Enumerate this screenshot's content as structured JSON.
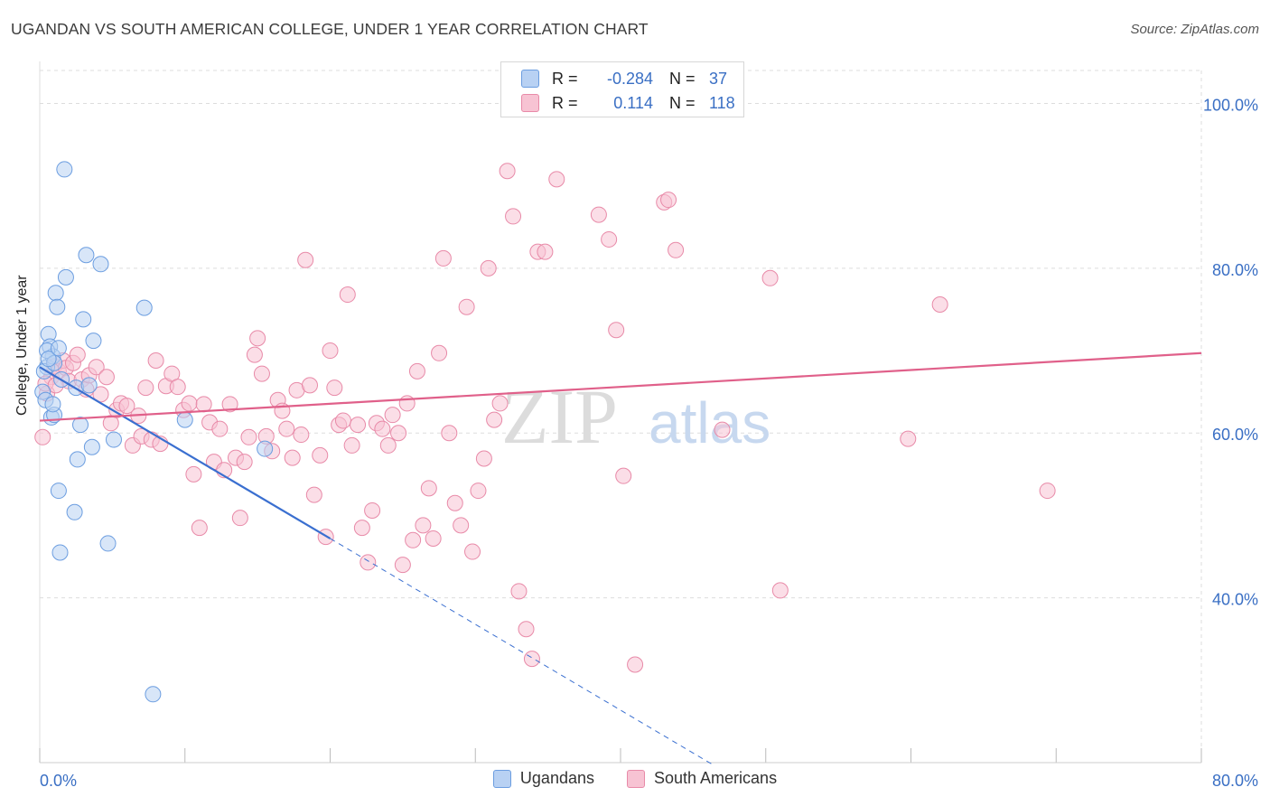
{
  "title": "UGANDAN VS SOUTH AMERICAN COLLEGE, UNDER 1 YEAR CORRELATION CHART",
  "source": "Source: ZipAtlas.com",
  "watermark": {
    "zip": "ZIP",
    "atlas": "atlas"
  },
  "legend": {
    "ugandans": {
      "label": "Ugandans",
      "r_label": "R =",
      "r_value": "-0.284",
      "n_label": "N =",
      "n_value": "37"
    },
    "south_americans": {
      "label": "South Americans",
      "r_label": "R =",
      "r_value": "0.114",
      "n_label": "N =",
      "n_value": "118"
    }
  },
  "colors": {
    "ugandans_fill": "#b8d1f3",
    "ugandans_stroke": "#6b9de0",
    "ugandans_line": "#3a6fd0",
    "sa_fill": "#f7c3d3",
    "sa_stroke": "#e88aa8",
    "sa_line": "#e0608a",
    "tick_label": "#3a6fc4",
    "grid": "#dddddd"
  },
  "chart_data": {
    "type": "scatter",
    "title": "UGANDAN VS SOUTH AMERICAN COLLEGE, UNDER 1 YEAR CORRELATION CHART",
    "xlabel": "",
    "ylabel": "College, Under 1 year",
    "xlim": [
      0,
      80
    ],
    "ylim": [
      20,
      104
    ],
    "x_tick_labels": [
      "0.0%",
      "80.0%"
    ],
    "y_ticks": [
      40,
      60,
      80,
      100
    ],
    "y_tick_labels": [
      "40.0%",
      "60.0%",
      "80.0%",
      "100.0%"
    ],
    "series": [
      {
        "name": "Ugandans",
        "trend": {
          "x0": 0,
          "y0": 68.0,
          "x1": 20.0,
          "y1": 47.2,
          "dash_to_x": 46.5,
          "dash_to_y": 19.6
        },
        "points": [
          [
            0.2,
            65.0
          ],
          [
            0.4,
            64.0
          ],
          [
            0.5,
            68.0
          ],
          [
            0.6,
            72.0
          ],
          [
            0.7,
            70.5
          ],
          [
            0.8,
            61.9
          ],
          [
            0.9,
            69.3
          ],
          [
            1.0,
            62.2
          ],
          [
            1.1,
            77.0
          ],
          [
            1.2,
            75.3
          ],
          [
            1.3,
            53.0
          ],
          [
            1.4,
            45.5
          ],
          [
            1.7,
            92.0
          ],
          [
            1.8,
            78.9
          ],
          [
            2.4,
            50.4
          ],
          [
            2.5,
            65.5
          ],
          [
            2.6,
            56.8
          ],
          [
            2.8,
            61.0
          ],
          [
            3.0,
            73.8
          ],
          [
            3.2,
            81.6
          ],
          [
            3.4,
            65.8
          ],
          [
            3.6,
            58.3
          ],
          [
            3.7,
            71.2
          ],
          [
            4.2,
            80.5
          ],
          [
            4.7,
            46.6
          ],
          [
            5.1,
            59.2
          ],
          [
            7.2,
            75.2
          ],
          [
            7.8,
            28.3
          ],
          [
            10.0,
            61.6
          ],
          [
            15.5,
            58.1
          ],
          [
            0.3,
            67.5
          ],
          [
            0.5,
            70.0
          ],
          [
            0.9,
            63.5
          ],
          [
            1.5,
            66.5
          ],
          [
            1.0,
            68.5
          ],
          [
            0.6,
            69.0
          ],
          [
            1.3,
            70.3
          ]
        ]
      },
      {
        "name": "South Americans",
        "trend": {
          "x0": 0,
          "y0": 61.5,
          "x1": 80.0,
          "y1": 69.7
        },
        "points": [
          [
            0.2,
            59.5
          ],
          [
            0.5,
            64.8
          ],
          [
            0.8,
            66.8
          ],
          [
            1.0,
            68.1
          ],
          [
            1.3,
            67.5
          ],
          [
            1.6,
            68.8
          ],
          [
            1.8,
            67.9
          ],
          [
            2.0,
            66.3
          ],
          [
            2.3,
            68.5
          ],
          [
            2.6,
            69.5
          ],
          [
            2.9,
            66.5
          ],
          [
            3.2,
            65.3
          ],
          [
            3.4,
            67.0
          ],
          [
            3.9,
            68.0
          ],
          [
            4.2,
            64.7
          ],
          [
            4.6,
            66.8
          ],
          [
            4.9,
            61.2
          ],
          [
            5.3,
            62.8
          ],
          [
            5.6,
            63.6
          ],
          [
            6.0,
            63.3
          ],
          [
            6.4,
            58.5
          ],
          [
            6.8,
            62.1
          ],
          [
            7.0,
            59.6
          ],
          [
            7.3,
            65.5
          ],
          [
            7.7,
            59.2
          ],
          [
            8.0,
            68.8
          ],
          [
            8.3,
            58.7
          ],
          [
            8.7,
            65.7
          ],
          [
            9.1,
            67.2
          ],
          [
            9.5,
            65.6
          ],
          [
            9.9,
            62.8
          ],
          [
            10.3,
            63.6
          ],
          [
            10.6,
            55.0
          ],
          [
            11.0,
            48.5
          ],
          [
            11.3,
            63.5
          ],
          [
            11.7,
            61.3
          ],
          [
            12.0,
            56.5
          ],
          [
            12.4,
            60.5
          ],
          [
            12.7,
            55.5
          ],
          [
            13.1,
            63.5
          ],
          [
            13.5,
            57.0
          ],
          [
            13.8,
            49.7
          ],
          [
            14.1,
            56.5
          ],
          [
            14.4,
            59.5
          ],
          [
            14.8,
            69.5
          ],
          [
            15.0,
            71.5
          ],
          [
            15.3,
            67.2
          ],
          [
            15.6,
            59.6
          ],
          [
            16.0,
            57.8
          ],
          [
            16.4,
            64.0
          ],
          [
            16.7,
            62.7
          ],
          [
            17.0,
            60.5
          ],
          [
            17.4,
            57.0
          ],
          [
            17.7,
            65.2
          ],
          [
            18.0,
            59.8
          ],
          [
            18.3,
            81.0
          ],
          [
            18.6,
            65.8
          ],
          [
            18.9,
            52.5
          ],
          [
            19.3,
            57.3
          ],
          [
            19.7,
            47.4
          ],
          [
            20.0,
            70.0
          ],
          [
            20.3,
            65.5
          ],
          [
            20.6,
            61.0
          ],
          [
            20.9,
            61.5
          ],
          [
            21.2,
            76.8
          ],
          [
            21.5,
            58.5
          ],
          [
            21.9,
            61.0
          ],
          [
            22.2,
            48.5
          ],
          [
            22.6,
            44.3
          ],
          [
            22.9,
            50.6
          ],
          [
            23.2,
            61.2
          ],
          [
            23.6,
            60.5
          ],
          [
            24.0,
            58.5
          ],
          [
            24.3,
            62.2
          ],
          [
            24.7,
            60.0
          ],
          [
            25.0,
            44.0
          ],
          [
            25.3,
            63.6
          ],
          [
            25.7,
            47.0
          ],
          [
            26.0,
            67.5
          ],
          [
            26.4,
            48.8
          ],
          [
            26.8,
            53.3
          ],
          [
            27.1,
            47.2
          ],
          [
            27.5,
            69.7
          ],
          [
            27.8,
            81.2
          ],
          [
            28.2,
            60.0
          ],
          [
            28.6,
            51.5
          ],
          [
            29.0,
            48.8
          ],
          [
            29.4,
            75.3
          ],
          [
            29.8,
            45.6
          ],
          [
            30.2,
            53.0
          ],
          [
            30.6,
            56.9
          ],
          [
            30.9,
            80.0
          ],
          [
            31.3,
            61.6
          ],
          [
            31.7,
            63.6
          ],
          [
            32.2,
            91.8
          ],
          [
            32.6,
            86.3
          ],
          [
            33.0,
            40.8
          ],
          [
            33.5,
            36.2
          ],
          [
            33.9,
            32.6
          ],
          [
            34.3,
            82.0
          ],
          [
            34.8,
            82.0
          ],
          [
            35.6,
            90.8
          ],
          [
            38.5,
            86.5
          ],
          [
            39.2,
            83.5
          ],
          [
            39.7,
            72.5
          ],
          [
            40.2,
            54.8
          ],
          [
            41.0,
            31.9
          ],
          [
            43.0,
            88.0
          ],
          [
            43.3,
            88.3
          ],
          [
            43.8,
            82.2
          ],
          [
            47.0,
            60.4
          ],
          [
            50.3,
            78.8
          ],
          [
            51.0,
            40.9
          ],
          [
            62.0,
            75.6
          ],
          [
            59.8,
            59.3
          ],
          [
            69.4,
            53.0
          ],
          [
            0.4,
            66.0
          ],
          [
            1.1,
            65.8
          ]
        ]
      }
    ]
  }
}
